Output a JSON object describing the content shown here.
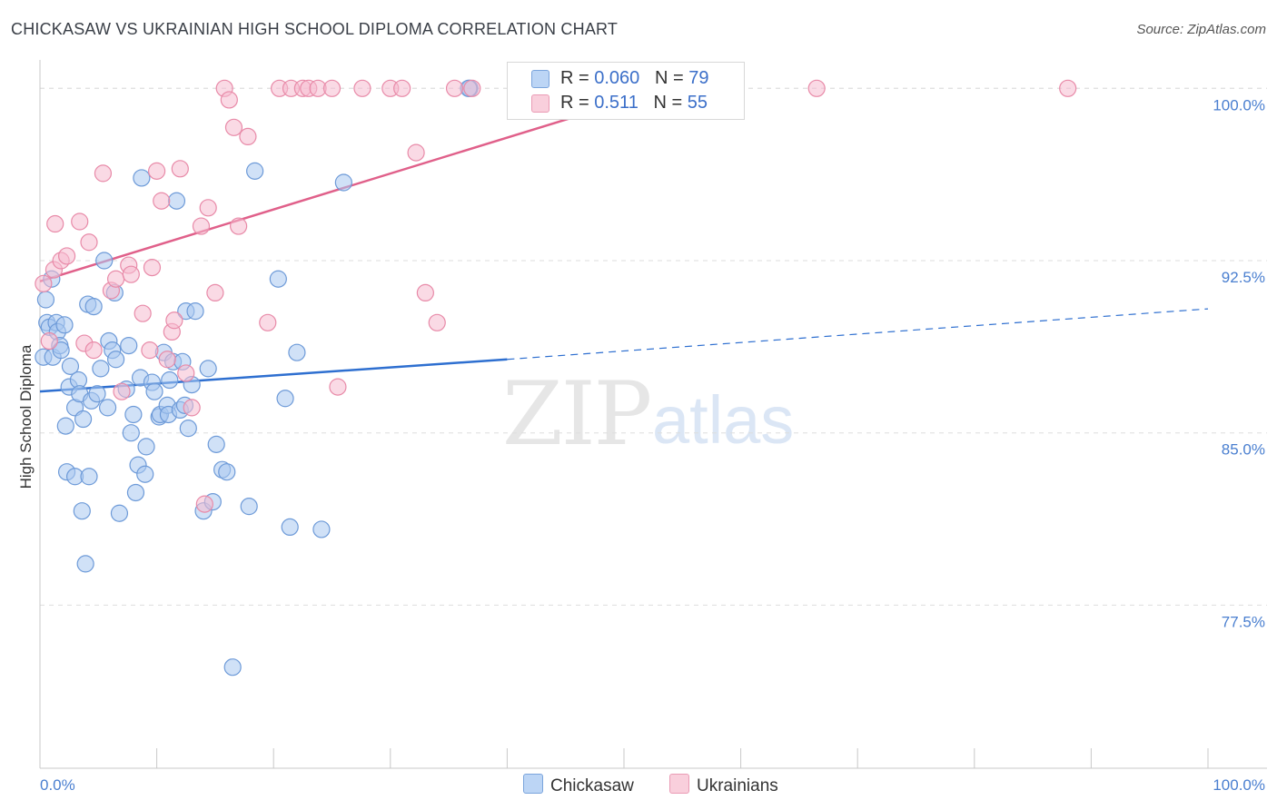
{
  "title": "CHICKASAW VS UKRAINIAN HIGH SCHOOL DIPLOMA CORRELATION CHART",
  "source": "Source: ZipAtlas.com",
  "watermark_left": "ZIP",
  "watermark_right": "atlas",
  "legend": {
    "row1": {
      "r_label": "R = ",
      "r_value": "0.060",
      "n_label": "N = ",
      "n_value": "79"
    },
    "row2": {
      "r_label": "R = ",
      "r_value": "0.511",
      "n_label": "N = ",
      "n_value": "55"
    }
  },
  "bottom_legend": {
    "series1": "Chickasaw",
    "series2": "Ukrainians"
  },
  "colors": {
    "blue_fill": "#a9c8f0",
    "blue_stroke": "#6d9ad8",
    "blue_line": "#2e6fd0",
    "pink_fill": "#f6bcd0",
    "pink_stroke": "#e88aa8",
    "pink_line": "#e0608a",
    "grid": "#dddddd",
    "axis_tick": "#4a7fd0"
  },
  "chart_data": {
    "type": "scatter",
    "title": "CHICKASAW VS UKRAINIAN HIGH SCHOOL DIPLOMA CORRELATION CHART",
    "xlabel": "",
    "ylabel": "High School Diploma",
    "xlim": [
      0,
      100
    ],
    "ylim": [
      70.4,
      101.0
    ],
    "x_tick_labels": [
      "0.0%",
      "100.0%"
    ],
    "y_ticks": [
      77.5,
      85.0,
      92.5,
      100.0
    ],
    "y_tick_labels": [
      "77.5%",
      "85.0%",
      "92.5%",
      "100.0%"
    ],
    "series": [
      {
        "name": "Chickasaw",
        "r": 0.06,
        "n": 79,
        "trend": {
          "x0": 0,
          "y0": 86.8,
          "x1": 40,
          "y1": 88.2,
          "dash_to_x": 100,
          "dash_to_y": 90.4
        },
        "points": [
          [
            0.3,
            88.3
          ],
          [
            0.5,
            90.8
          ],
          [
            0.6,
            89.8
          ],
          [
            0.8,
            89.6
          ],
          [
            1.0,
            91.7
          ],
          [
            1.1,
            88.3
          ],
          [
            1.4,
            89.8
          ],
          [
            1.5,
            89.4
          ],
          [
            1.7,
            88.8
          ],
          [
            1.8,
            88.6
          ],
          [
            2.1,
            89.7
          ],
          [
            2.2,
            85.3
          ],
          [
            2.3,
            83.3
          ],
          [
            2.5,
            87.0
          ],
          [
            2.6,
            87.9
          ],
          [
            3.0,
            86.1
          ],
          [
            3.0,
            83.1
          ],
          [
            3.3,
            87.3
          ],
          [
            3.4,
            86.7
          ],
          [
            3.6,
            81.6
          ],
          [
            3.7,
            85.6
          ],
          [
            3.9,
            79.3
          ],
          [
            4.1,
            90.6
          ],
          [
            4.2,
            83.1
          ],
          [
            4.4,
            86.4
          ],
          [
            4.6,
            90.5
          ],
          [
            4.9,
            86.7
          ],
          [
            5.2,
            87.8
          ],
          [
            5.5,
            92.5
          ],
          [
            5.8,
            86.1
          ],
          [
            5.9,
            89.0
          ],
          [
            6.2,
            88.6
          ],
          [
            6.4,
            91.1
          ],
          [
            6.5,
            88.2
          ],
          [
            6.8,
            81.5
          ],
          [
            7.4,
            86.9
          ],
          [
            7.6,
            88.8
          ],
          [
            7.8,
            85.0
          ],
          [
            8.0,
            85.8
          ],
          [
            8.2,
            82.4
          ],
          [
            8.4,
            83.6
          ],
          [
            8.6,
            87.4
          ],
          [
            8.7,
            96.1
          ],
          [
            9.0,
            83.2
          ],
          [
            9.1,
            84.4
          ],
          [
            9.6,
            87.2
          ],
          [
            9.8,
            86.8
          ],
          [
            10.2,
            85.7
          ],
          [
            10.3,
            85.8
          ],
          [
            10.6,
            88.5
          ],
          [
            10.9,
            86.2
          ],
          [
            11.0,
            85.8
          ],
          [
            11.1,
            87.3
          ],
          [
            11.4,
            88.1
          ],
          [
            11.7,
            95.1
          ],
          [
            12.0,
            86.0
          ],
          [
            12.2,
            88.1
          ],
          [
            12.4,
            86.2
          ],
          [
            12.5,
            90.3
          ],
          [
            12.7,
            85.2
          ],
          [
            13.0,
            87.1
          ],
          [
            13.3,
            90.3
          ],
          [
            14.0,
            81.6
          ],
          [
            14.4,
            87.8
          ],
          [
            14.8,
            82.0
          ],
          [
            15.1,
            84.5
          ],
          [
            15.6,
            83.4
          ],
          [
            16.0,
            83.3
          ],
          [
            16.5,
            74.8
          ],
          [
            17.9,
            81.8
          ],
          [
            18.4,
            96.4
          ],
          [
            20.4,
            91.7
          ],
          [
            21.0,
            86.5
          ],
          [
            21.4,
            80.9
          ],
          [
            22.0,
            88.5
          ],
          [
            24.1,
            80.8
          ],
          [
            26.0,
            95.9
          ],
          [
            36.8,
            100.0
          ],
          [
            36.7,
            100.0
          ]
        ]
      },
      {
        "name": "Ukrainians",
        "r": 0.511,
        "n": 55,
        "trend": {
          "x0": 0,
          "y0": 91.6,
          "x1": 55,
          "y1": 100.2
        },
        "points": [
          [
            0.3,
            91.5
          ],
          [
            0.8,
            89.0
          ],
          [
            1.2,
            92.1
          ],
          [
            1.3,
            94.1
          ],
          [
            1.8,
            92.5
          ],
          [
            2.3,
            92.7
          ],
          [
            3.4,
            94.2
          ],
          [
            3.8,
            88.9
          ],
          [
            4.2,
            93.3
          ],
          [
            4.6,
            88.6
          ],
          [
            5.4,
            96.3
          ],
          [
            6.1,
            91.2
          ],
          [
            6.5,
            91.7
          ],
          [
            7.0,
            86.8
          ],
          [
            7.6,
            92.3
          ],
          [
            7.8,
            91.9
          ],
          [
            8.8,
            90.2
          ],
          [
            9.4,
            88.6
          ],
          [
            9.6,
            92.2
          ],
          [
            10.0,
            96.4
          ],
          [
            10.4,
            95.1
          ],
          [
            10.9,
            88.2
          ],
          [
            11.3,
            89.4
          ],
          [
            11.5,
            89.9
          ],
          [
            12.0,
            96.5
          ],
          [
            12.5,
            87.6
          ],
          [
            13.0,
            86.1
          ],
          [
            13.8,
            94.0
          ],
          [
            14.1,
            81.9
          ],
          [
            14.4,
            94.8
          ],
          [
            15.0,
            91.1
          ],
          [
            15.8,
            100.0
          ],
          [
            16.2,
            99.5
          ],
          [
            16.6,
            98.3
          ],
          [
            17.0,
            94.0
          ],
          [
            17.8,
            97.9
          ],
          [
            19.5,
            89.8
          ],
          [
            20.5,
            100.0
          ],
          [
            21.5,
            100.0
          ],
          [
            22.5,
            100.0
          ],
          [
            23.0,
            100.0
          ],
          [
            23.8,
            100.0
          ],
          [
            25.0,
            100.0
          ],
          [
            25.5,
            87.0
          ],
          [
            27.6,
            100.0
          ],
          [
            30.0,
            100.0
          ],
          [
            31.0,
            100.0
          ],
          [
            32.2,
            97.2
          ],
          [
            33.0,
            91.1
          ],
          [
            34.0,
            89.8
          ],
          [
            35.5,
            100.0
          ],
          [
            37.0,
            100.0
          ],
          [
            47.0,
            100.0
          ],
          [
            66.5,
            100.0
          ],
          [
            88.0,
            100.0
          ]
        ]
      }
    ]
  }
}
